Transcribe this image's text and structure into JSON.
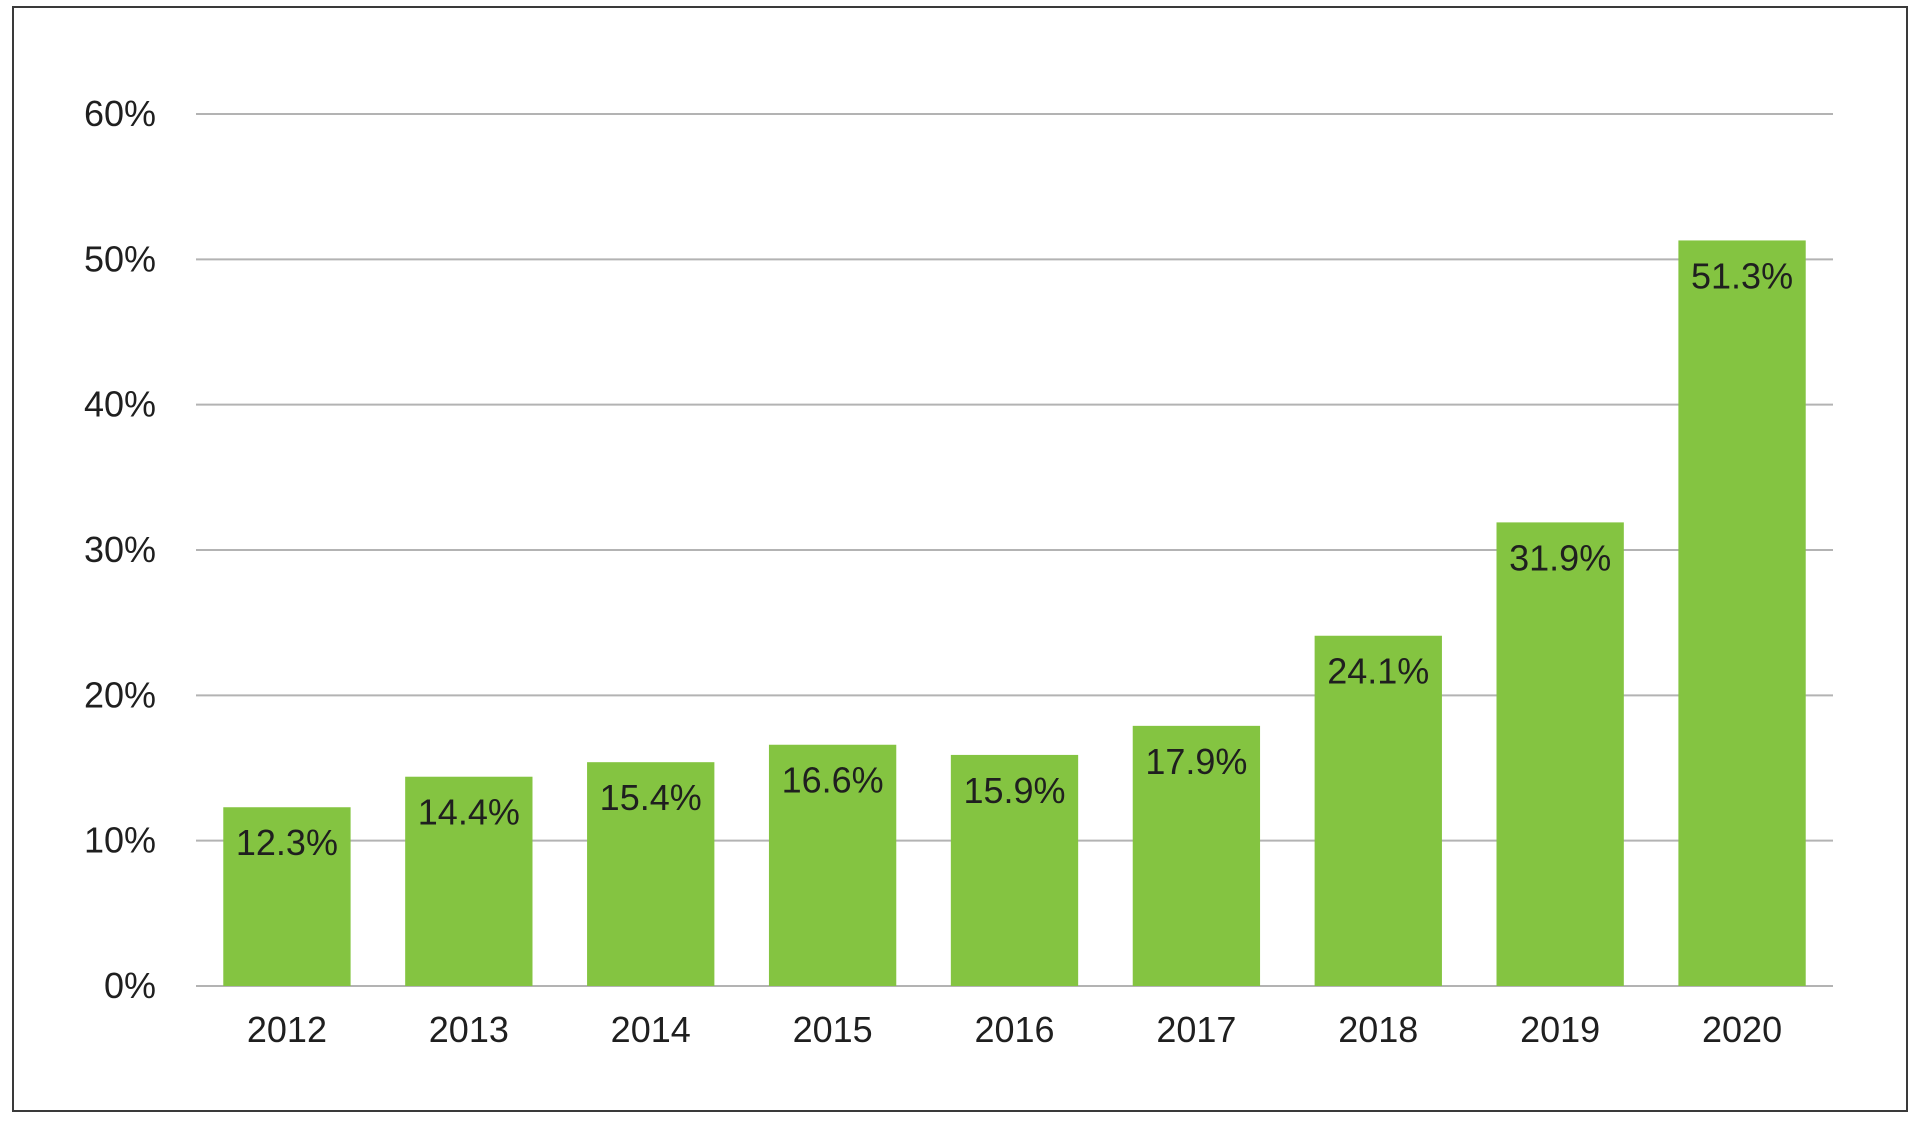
{
  "chart_data": {
    "type": "bar",
    "title": "",
    "xlabel": "",
    "ylabel": "",
    "categories": [
      "2012",
      "2013",
      "2014",
      "2015",
      "2016",
      "2017",
      "2018",
      "2019",
      "2020"
    ],
    "values": [
      12.3,
      14.4,
      15.4,
      16.6,
      15.9,
      17.9,
      24.1,
      31.9,
      51.3
    ],
    "data_labels": [
      "12.3%",
      "14.4%",
      "15.4%",
      "16.6%",
      "15.9%",
      "17.9%",
      "24.1%",
      "31.9%",
      "51.3%"
    ],
    "ylim": [
      0,
      60
    ],
    "yticks": [
      0,
      10,
      20,
      30,
      40,
      50,
      60
    ],
    "ytick_labels": [
      "0%",
      "10%",
      "20%",
      "30%",
      "40%",
      "50%",
      "60%"
    ],
    "grid": true,
    "legend": "none",
    "colors": {
      "bar": "#84c441",
      "grid": "#b3b3b3",
      "text": "#1f1f1f",
      "frame": "#3a3a3a"
    }
  }
}
